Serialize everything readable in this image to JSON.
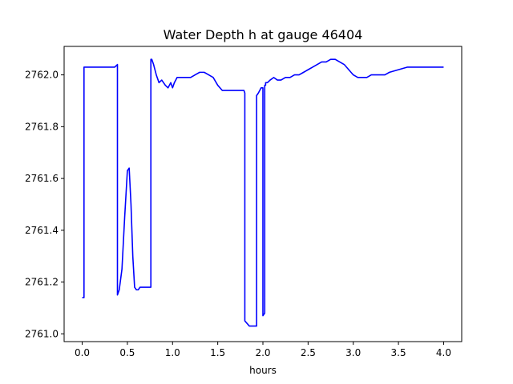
{
  "chart_data": {
    "type": "line",
    "title": "Water Depth h at gauge 46404",
    "xlabel": "hours",
    "ylabel": "",
    "xlim": [
      -0.2,
      4.2
    ],
    "ylim": [
      2760.97,
      2762.11
    ],
    "xticks": [
      0.0,
      0.5,
      1.0,
      1.5,
      2.0,
      2.5,
      3.0,
      3.5,
      4.0
    ],
    "xtick_labels": [
      "0.0",
      "0.5",
      "1.0",
      "1.5",
      "2.0",
      "2.5",
      "3.0",
      "3.5",
      "4.0"
    ],
    "yticks": [
      2761.0,
      2761.2,
      2761.4,
      2761.6,
      2761.8,
      2762.0
    ],
    "ytick_labels": [
      "2761.0",
      "2761.2",
      "2761.4",
      "2761.6",
      "2761.8",
      "2762.0"
    ],
    "grid": false,
    "series": [
      {
        "color": "#0000ff",
        "x": [
          0.0,
          0.02,
          0.02,
          0.1,
          0.2,
          0.3,
          0.36,
          0.39,
          0.39,
          0.41,
          0.44,
          0.47,
          0.5,
          0.52,
          0.54,
          0.56,
          0.58,
          0.6,
          0.62,
          0.64,
          0.66,
          0.7,
          0.76,
          0.76,
          0.77,
          0.79,
          0.82,
          0.85,
          0.88,
          0.9,
          0.92,
          0.95,
          0.98,
          1.0,
          1.02,
          1.05,
          1.08,
          1.1,
          1.13,
          1.16,
          1.2,
          1.25,
          1.3,
          1.35,
          1.4,
          1.45,
          1.5,
          1.55,
          1.6,
          1.65,
          1.7,
          1.75,
          1.79,
          1.8,
          1.8,
          1.85,
          1.9,
          1.93,
          1.93,
          1.95,
          1.98,
          2.0,
          2.0,
          2.02,
          2.02,
          2.03,
          2.03,
          2.05,
          2.08,
          2.12,
          2.16,
          2.2,
          2.25,
          2.3,
          2.35,
          2.4,
          2.45,
          2.5,
          2.55,
          2.6,
          2.65,
          2.7,
          2.75,
          2.8,
          2.85,
          2.9,
          2.95,
          3.0,
          3.05,
          3.1,
          3.15,
          3.2,
          3.25,
          3.3,
          3.35,
          3.4,
          3.5,
          3.6,
          3.7,
          3.8,
          3.9,
          4.0
        ],
        "y": [
          2761.14,
          2761.14,
          2762.03,
          2762.03,
          2762.03,
          2762.03,
          2762.03,
          2762.04,
          2761.15,
          2761.17,
          2761.25,
          2761.45,
          2761.63,
          2761.64,
          2761.5,
          2761.3,
          2761.18,
          2761.17,
          2761.17,
          2761.18,
          2761.18,
          2761.18,
          2761.18,
          2762.06,
          2762.06,
          2762.04,
          2762.0,
          2761.97,
          2761.98,
          2761.97,
          2761.96,
          2761.95,
          2761.97,
          2761.95,
          2761.97,
          2761.99,
          2761.99,
          2761.99,
          2761.99,
          2761.99,
          2761.99,
          2762.0,
          2762.01,
          2762.01,
          2762.0,
          2761.99,
          2761.96,
          2761.94,
          2761.94,
          2761.94,
          2761.94,
          2761.94,
          2761.94,
          2761.93,
          2761.05,
          2761.03,
          2761.03,
          2761.03,
          2761.92,
          2761.93,
          2761.95,
          2761.95,
          2761.07,
          2761.08,
          2761.96,
          2761.96,
          2761.97,
          2761.97,
          2761.98,
          2761.99,
          2761.98,
          2761.98,
          2761.99,
          2761.99,
          2762.0,
          2762.0,
          2762.01,
          2762.02,
          2762.03,
          2762.04,
          2762.05,
          2762.05,
          2762.06,
          2762.06,
          2762.05,
          2762.04,
          2762.02,
          2762.0,
          2761.99,
          2761.99,
          2761.99,
          2762.0,
          2762.0,
          2762.0,
          2762.0,
          2762.01,
          2762.02,
          2762.03,
          2762.03,
          2762.03,
          2762.03,
          2762.03
        ]
      }
    ]
  }
}
